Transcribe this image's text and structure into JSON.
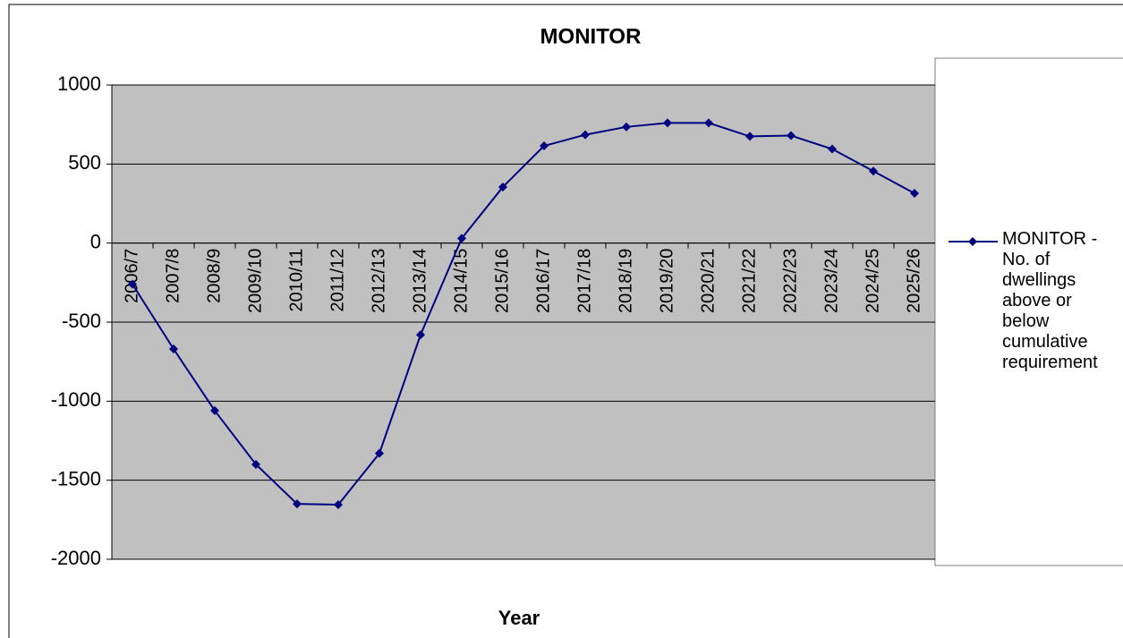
{
  "chart_data": {
    "type": "line",
    "title": "MONITOR",
    "x_label": "Year",
    "categories": [
      "2006/7",
      "2007/8",
      "2008/9",
      "2009/10",
      "2010/11",
      "2011/12",
      "2012/13",
      "2013/14",
      "2014/15",
      "2015/16",
      "2016/17",
      "2017/18",
      "2018/19",
      "2019/20",
      "2020/21",
      "2021/22",
      "2022/23",
      "2023/24",
      "2024/25",
      "2025/26"
    ],
    "series": [
      {
        "name": "MONITOR - No. of dwellings above or below cumulative requirement",
        "color": "#000080",
        "values": [
          -260,
          -670,
          -1060,
          -1400,
          -1650,
          -1655,
          -1330,
          -580,
          30,
          355,
          615,
          685,
          735,
          760,
          760,
          675,
          680,
          595,
          455,
          315
        ]
      }
    ],
    "ylim": [
      -2000,
      1000
    ],
    "yticks": [
      -2000,
      -1500,
      -1000,
      -500,
      0,
      500,
      1000
    ],
    "grid": true,
    "legend": "right"
  }
}
